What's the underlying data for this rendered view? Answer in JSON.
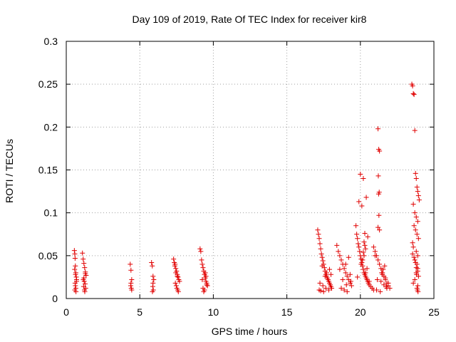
{
  "chart_data": {
    "type": "scatter",
    "title": "Day 109 of 2019, Rate Of TEC Index for receiver kir8",
    "xlabel": "GPS time / hours",
    "ylabel": "ROTI / TECUs",
    "xlim": [
      0,
      25
    ],
    "ylim": [
      0,
      0.3
    ],
    "xticks": [
      0,
      5,
      10,
      15,
      20,
      25
    ],
    "xtick_labels": [
      "0",
      "5",
      "10",
      "15",
      "20",
      "25"
    ],
    "yticks": [
      0,
      0.05,
      0.1,
      0.15,
      0.2,
      0.25,
      0.3
    ],
    "ytick_labels": [
      "0",
      "0.05",
      "0.1",
      "0.15",
      "0.2",
      "0.25",
      "0.3"
    ],
    "grid": true,
    "marker": "+",
    "color": "#e00000",
    "series": [
      {
        "name": "ROTI",
        "x": [
          0.55,
          0.58,
          0.6,
          0.62,
          0.65,
          0.68,
          0.7,
          0.6,
          0.62,
          0.65,
          0.58,
          0.66,
          0.7,
          0.63,
          0.57,
          1.1,
          1.15,
          1.2,
          1.25,
          1.3,
          1.35,
          1.2,
          1.22,
          1.28,
          1.18,
          1.32,
          1.24,
          1.26,
          1.3,
          1.16,
          4.35,
          4.4,
          4.45,
          4.4,
          4.38,
          4.42,
          4.45,
          5.8,
          5.85,
          5.9,
          5.95,
          5.88,
          5.92,
          5.86,
          5.9,
          7.3,
          7.35,
          7.4,
          7.45,
          7.5,
          7.55,
          7.6,
          7.65,
          7.7,
          7.42,
          7.48,
          7.52,
          7.58,
          7.62,
          7.38,
          7.45,
          7.55,
          9.1,
          9.15,
          9.2,
          9.25,
          9.3,
          9.35,
          9.4,
          9.45,
          9.5,
          9.55,
          9.6,
          9.3,
          9.4,
          9.35,
          9.45,
          9.5,
          9.25,
          9.55,
          17.1,
          17.15,
          17.2,
          17.25,
          17.3,
          17.35,
          17.4,
          17.45,
          17.5,
          17.55,
          17.6,
          17.65,
          17.7,
          17.75,
          17.8,
          17.85,
          17.9,
          17.95,
          18.0,
          18.05,
          17.2,
          17.3,
          17.5,
          17.7,
          17.9,
          17.4,
          17.6,
          17.8,
          17.25,
          17.45,
          17.65,
          17.85,
          18.0,
          18.4,
          18.5,
          18.6,
          18.7,
          18.8,
          18.9,
          19.0,
          19.1,
          19.2,
          19.3,
          19.4,
          18.7,
          18.9,
          19.1,
          19.3,
          18.6,
          19.0,
          19.2,
          18.8,
          19.35,
          19.05,
          19.7,
          19.75,
          19.8,
          19.85,
          19.9,
          19.95,
          20.0,
          20.05,
          20.1,
          20.15,
          20.2,
          20.25,
          20.3,
          20.35,
          20.4,
          20.45,
          20.5,
          20.55,
          20.6,
          20.7,
          20.8,
          20.9,
          20.0,
          20.2,
          20.4,
          19.9,
          20.1,
          20.3,
          20.5,
          20.25,
          20.3,
          20.35,
          20.2,
          20.25,
          20.15,
          20.05,
          20.45,
          20.35,
          19.8,
          20.6,
          20.9,
          21.0,
          21.1,
          21.2,
          21.3,
          21.4,
          21.5,
          21.6,
          21.7,
          21.8,
          21.9,
          22.0,
          21.2,
          21.25,
          21.3,
          21.22,
          21.28,
          21.24,
          21.26,
          21.2,
          21.3,
          21.5,
          21.7,
          21.4,
          21.6,
          21.8,
          21.1,
          21.35,
          21.45,
          21.55,
          21.65,
          21.75,
          21.9,
          21.15,
          21.0,
          23.5,
          23.55,
          23.6,
          23.65,
          23.7,
          23.75,
          23.8,
          23.85,
          23.9,
          23.95,
          24.0,
          23.6,
          23.7,
          23.8,
          23.9,
          23.65,
          23.75,
          23.85,
          23.95,
          23.55,
          23.6,
          23.8,
          23.9,
          23.7,
          23.85,
          23.9,
          23.8,
          23.95,
          23.7,
          23.6,
          23.9,
          23.85,
          23.88,
          23.92,
          23.82,
          23.9,
          23.8,
          23.75,
          23.65,
          23.55
        ],
        "y": [
          0.056,
          0.052,
          0.047,
          0.038,
          0.03,
          0.025,
          0.02,
          0.018,
          0.015,
          0.012,
          0.01,
          0.008,
          0.022,
          0.028,
          0.034,
          0.053,
          0.046,
          0.041,
          0.036,
          0.031,
          0.027,
          0.024,
          0.02,
          0.017,
          0.014,
          0.012,
          0.01,
          0.008,
          0.029,
          0.022,
          0.04,
          0.033,
          0.022,
          0.018,
          0.015,
          0.012,
          0.01,
          0.042,
          0.038,
          0.026,
          0.022,
          0.014,
          0.01,
          0.008,
          0.018,
          0.046,
          0.042,
          0.04,
          0.035,
          0.032,
          0.028,
          0.025,
          0.022,
          0.02,
          0.018,
          0.015,
          0.012,
          0.01,
          0.008,
          0.038,
          0.03,
          0.026,
          0.058,
          0.055,
          0.045,
          0.04,
          0.036,
          0.032,
          0.028,
          0.024,
          0.02,
          0.018,
          0.015,
          0.012,
          0.01,
          0.008,
          0.03,
          0.026,
          0.022,
          0.016,
          0.08,
          0.075,
          0.07,
          0.064,
          0.058,
          0.052,
          0.048,
          0.044,
          0.04,
          0.036,
          0.032,
          0.028,
          0.026,
          0.024,
          0.022,
          0.02,
          0.018,
          0.016,
          0.014,
          0.012,
          0.01,
          0.009,
          0.008,
          0.03,
          0.034,
          0.038,
          0.026,
          0.022,
          0.018,
          0.015,
          0.012,
          0.01,
          0.028,
          0.062,
          0.055,
          0.05,
          0.045,
          0.04,
          0.035,
          0.03,
          0.026,
          0.022,
          0.018,
          0.015,
          0.012,
          0.01,
          0.008,
          0.028,
          0.034,
          0.04,
          0.048,
          0.022,
          0.02,
          0.016,
          0.085,
          0.075,
          0.07,
          0.064,
          0.06,
          0.055,
          0.05,
          0.046,
          0.042,
          0.038,
          0.034,
          0.03,
          0.028,
          0.026,
          0.024,
          0.022,
          0.02,
          0.018,
          0.016,
          0.014,
          0.012,
          0.01,
          0.145,
          0.14,
          0.118,
          0.113,
          0.108,
          0.076,
          0.072,
          0.066,
          0.062,
          0.058,
          0.054,
          0.05,
          0.045,
          0.04,
          0.035,
          0.03,
          0.025,
          0.02,
          0.06,
          0.055,
          0.05,
          0.045,
          0.04,
          0.035,
          0.03,
          0.026,
          0.022,
          0.018,
          0.015,
          0.012,
          0.198,
          0.174,
          0.172,
          0.143,
          0.124,
          0.122,
          0.097,
          0.083,
          0.08,
          0.028,
          0.024,
          0.02,
          0.016,
          0.012,
          0.01,
          0.008,
          0.03,
          0.034,
          0.038,
          0.014,
          0.018,
          0.022,
          0.05,
          0.25,
          0.248,
          0.239,
          0.238,
          0.196,
          0.146,
          0.14,
          0.13,
          0.125,
          0.12,
          0.115,
          0.11,
          0.1,
          0.095,
          0.09,
          0.085,
          0.08,
          0.075,
          0.07,
          0.065,
          0.06,
          0.055,
          0.05,
          0.045,
          0.04,
          0.035,
          0.03,
          0.026,
          0.022,
          0.018,
          0.015,
          0.012,
          0.01,
          0.008,
          0.028,
          0.032,
          0.036,
          0.042,
          0.048,
          0.052
        ]
      }
    ]
  }
}
